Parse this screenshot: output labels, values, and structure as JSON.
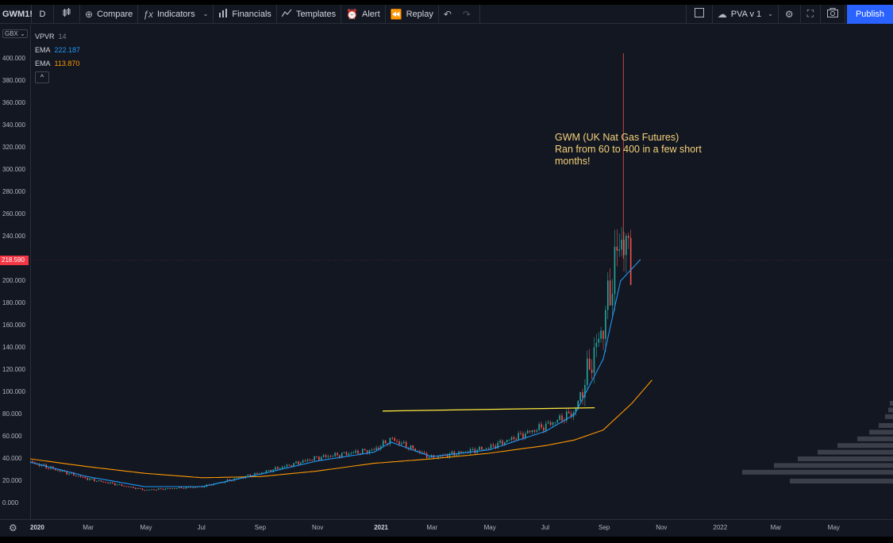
{
  "toolbar": {
    "symbol": "GWM1!",
    "interval": "D",
    "compare": "Compare",
    "indicators": "Indicators",
    "financials": "Financials",
    "templates": "Templates",
    "alert": "Alert",
    "replay": "Replay",
    "layout_name": "PVA v 1",
    "publish": "Publish"
  },
  "legend": {
    "vpvr_label": "VPVR",
    "vpvr_value": "14",
    "ema1_label": "EMA",
    "ema1_value": "222.187",
    "ema1_color": "#2196f3",
    "ema2_label": "EMA",
    "ema2_value": "113.870",
    "ema2_color": "#ff9800"
  },
  "price_axis": {
    "currency": "GBX",
    "last_price": "218.590",
    "ticks": [
      "400.000",
      "380.000",
      "360.000",
      "340.000",
      "320.000",
      "300.000",
      "280.000",
      "260.000",
      "240.000",
      "220.000",
      "200.000",
      "180.000",
      "160.000",
      "140.000",
      "120.000",
      "100.000",
      "80.000",
      "60.000",
      "40.000",
      "20.000",
      "0.000"
    ]
  },
  "time_axis": {
    "ticks": [
      {
        "label": "2020",
        "year": true
      },
      {
        "label": "Mar",
        "year": false
      },
      {
        "label": "May",
        "year": false
      },
      {
        "label": "Jul",
        "year": false
      },
      {
        "label": "Sep",
        "year": false
      },
      {
        "label": "Nov",
        "year": false
      },
      {
        "label": "2021",
        "year": true
      },
      {
        "label": "Mar",
        "year": false
      },
      {
        "label": "May",
        "year": false
      },
      {
        "label": "Jul",
        "year": false
      },
      {
        "label": "Sep",
        "year": false
      },
      {
        "label": "Nov",
        "year": false
      },
      {
        "label": "2022",
        "year": false
      },
      {
        "label": "Mar",
        "year": false
      },
      {
        "label": "May",
        "year": false
      }
    ]
  },
  "annotation": {
    "line1": "GWM (UK Nat Gas Futures)",
    "line2": "Ran from 60 to 400 in a few short",
    "line3": "months!",
    "color": "#f5d27a"
  },
  "chart_data": {
    "type": "line",
    "x_labels": [
      "2020",
      "Mar",
      "May",
      "Jul",
      "Sep",
      "Nov",
      "2021",
      "Mar",
      "May",
      "Jul",
      "Sep",
      "Nov",
      "2022",
      "Mar",
      "May"
    ],
    "ylim": [
      0,
      400
    ],
    "series": [
      {
        "values_x": [
          0,
          1,
          2,
          3,
          4,
          5,
          6,
          6.3,
          7,
          8,
          9,
          9.5,
          10,
          10.3,
          10.5
        ],
        "values": [
          37,
          22,
          12,
          15,
          27,
          41,
          48,
          58,
          41,
          50,
          70,
          82,
          160,
          240,
          218
        ]
      },
      {
        "name": "EMA",
        "color": "#2196f3",
        "values_x": [
          0,
          1,
          2,
          3,
          4,
          5,
          6,
          6.3,
          7,
          8,
          9,
          9.5,
          10,
          10.3,
          10.7
        ],
        "values": [
          37,
          24,
          15,
          15,
          26,
          38,
          46,
          55,
          42,
          48,
          65,
          80,
          130,
          200,
          222.187
        ]
      },
      {
        "name": "EMA",
        "color": "#ff9800",
        "values_x": [
          0,
          1,
          2,
          3,
          4,
          5,
          6,
          7,
          8,
          9,
          9.5,
          10,
          10.5,
          10.9
        ],
        "values": [
          40,
          33,
          27,
          23,
          24,
          29,
          36,
          40,
          45,
          52,
          57,
          66,
          90,
          113.87
        ]
      }
    ],
    "horizontal_line": {
      "from_x": 6.15,
      "to_x": 9.85,
      "value_start": 83,
      "value_end": 86,
      "color": "#ffeb3b"
    },
    "spike_high": 405,
    "last_price": 218.59
  }
}
